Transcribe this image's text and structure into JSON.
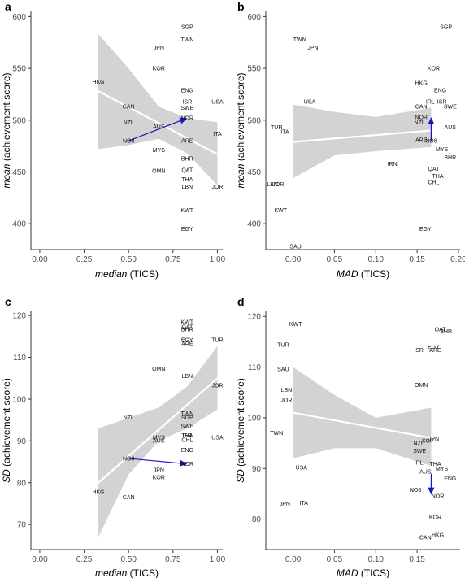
{
  "colors": {
    "band": "#d3d3d3",
    "fit_line": "#ffffff",
    "arrow": "#1515c8",
    "highlight_label": "#1515c8",
    "axis": "#333333"
  },
  "chart_data": [
    {
      "panel": "a",
      "type": "scatter",
      "xlabel": {
        "italic": "median",
        "normal": " (TICS)"
      },
      "ylabel": {
        "italic": "mean",
        "normal": " (achievement score)"
      },
      "xlim": [
        -0.05,
        1.03
      ],
      "ylim": [
        375,
        605
      ],
      "xticks": [
        0.0,
        0.25,
        0.5,
        0.75,
        1.0
      ],
      "xtick_labels": [
        "0.00",
        "0.25",
        "0.50",
        "0.75",
        "1.00"
      ],
      "yticks": [
        400,
        450,
        500,
        550,
        600
      ],
      "ytick_labels": [
        "400",
        "450",
        "500",
        "550",
        "600"
      ],
      "grid": false,
      "points": [
        {
          "label": "SGP",
          "x": 0.83,
          "y": 590
        },
        {
          "label": "TWN",
          "x": 0.83,
          "y": 578
        },
        {
          "label": "JPN",
          "x": 0.67,
          "y": 570
        },
        {
          "label": "KOR",
          "x": 0.67,
          "y": 550
        },
        {
          "label": "HKG",
          "x": 0.33,
          "y": 537
        },
        {
          "label": "ENG",
          "x": 0.83,
          "y": 529
        },
        {
          "label": "ISR",
          "x": 0.83,
          "y": 518
        },
        {
          "label": "USA",
          "x": 1.0,
          "y": 518
        },
        {
          "label": "CAN",
          "x": 0.5,
          "y": 513
        },
        {
          "label": "SWE",
          "x": 0.83,
          "y": 512
        },
        {
          "label": "NOR",
          "x": 0.83,
          "y": 502
        },
        {
          "label": "NZL",
          "x": 0.5,
          "y": 498
        },
        {
          "label": "AUS",
          "x": 0.67,
          "y": 494
        },
        {
          "label": "ITA",
          "x": 1.0,
          "y": 487
        },
        {
          "label": "NO8",
          "x": 0.5,
          "y": 480
        },
        {
          "label": "ARE",
          "x": 0.83,
          "y": 480
        },
        {
          "label": "MYS",
          "x": 0.67,
          "y": 471
        },
        {
          "label": "BHR",
          "x": 0.83,
          "y": 463
        },
        {
          "label": "OMN",
          "x": 0.67,
          "y": 451
        },
        {
          "label": "QAT",
          "x": 0.83,
          "y": 452
        },
        {
          "label": "THA",
          "x": 0.83,
          "y": 443
        },
        {
          "label": "LBN",
          "x": 0.83,
          "y": 436
        },
        {
          "label": "JOR",
          "x": 1.0,
          "y": 436
        },
        {
          "label": "KWT",
          "x": 0.83,
          "y": 413
        },
        {
          "label": "EGY",
          "x": 0.83,
          "y": 395
        }
      ],
      "fit": {
        "x": [
          0.33,
          1.0
        ],
        "y": [
          528,
          467
        ]
      },
      "band": {
        "x": [
          0.33,
          0.5,
          0.67,
          0.83,
          1.0
        ],
        "lower": [
          472,
          476,
          482,
          468,
          437
        ],
        "upper": [
          583,
          550,
          513,
          502,
          498
        ]
      },
      "arrows": [
        {
          "from": [
            0.5,
            480
          ],
          "to": [
            0.83,
            502
          ]
        }
      ],
      "highlight": []
    },
    {
      "panel": "b",
      "type": "scatter",
      "xlabel": {
        "italic": "MAD",
        "normal": " (TICS)"
      },
      "ylabel": {
        "italic": "mean",
        "normal": " (achievement score)"
      },
      "xlim": [
        -0.033,
        0.202
      ],
      "ylim": [
        375,
        605
      ],
      "xticks": [
        0.0,
        0.05,
        0.1,
        0.15,
        0.2
      ],
      "xtick_labels": [
        "0.00",
        "0.05",
        "0.10",
        "0.15",
        "0.20"
      ],
      "yticks": [
        400,
        450,
        500,
        550,
        600
      ],
      "ytick_labels": [
        "400",
        "450",
        "500",
        "550",
        "600"
      ],
      "grid": false,
      "points": [
        {
          "label": "SGP",
          "x": 0.185,
          "y": 590
        },
        {
          "label": "TWN",
          "x": 0.008,
          "y": 578
        },
        {
          "label": "JPN",
          "x": 0.024,
          "y": 570
        },
        {
          "label": "KOR",
          "x": 0.17,
          "y": 550
        },
        {
          "label": "HKG",
          "x": 0.155,
          "y": 536
        },
        {
          "label": "ENG",
          "x": 0.178,
          "y": 529
        },
        {
          "label": "USA",
          "x": 0.02,
          "y": 518
        },
        {
          "label": "IRL",
          "x": 0.166,
          "y": 518
        },
        {
          "label": "ISR",
          "x": 0.18,
          "y": 518
        },
        {
          "label": "CAN",
          "x": 0.155,
          "y": 513
        },
        {
          "label": "SWE",
          "x": 0.19,
          "y": 513
        },
        {
          "label": "NOR",
          "x": 0.155,
          "y": 503
        },
        {
          "label": "NZL",
          "x": 0.153,
          "y": 498
        },
        {
          "label": "TUR",
          "x": -0.02,
          "y": 493
        },
        {
          "label": "AUS",
          "x": 0.19,
          "y": 493
        },
        {
          "label": "ITA",
          "x": -0.01,
          "y": 489
        },
        {
          "label": "ARE",
          "x": 0.155,
          "y": 481
        },
        {
          "label": "NO8",
          "x": 0.167,
          "y": 480
        },
        {
          "label": "MYS",
          "x": 0.18,
          "y": 472
        },
        {
          "label": "BHR",
          "x": 0.19,
          "y": 464
        },
        {
          "label": "QAT",
          "x": 0.17,
          "y": 453
        },
        {
          "label": "IRN",
          "x": 0.12,
          "y": 458
        },
        {
          "label": "THA",
          "x": 0.175,
          "y": 446
        },
        {
          "label": "CHL",
          "x": 0.17,
          "y": 440
        },
        {
          "label": "LBN",
          "x": -0.025,
          "y": 438
        },
        {
          "label": "JOR",
          "x": -0.018,
          "y": 438
        },
        {
          "label": "KWT",
          "x": -0.015,
          "y": 413
        },
        {
          "label": "EGY",
          "x": 0.16,
          "y": 395
        },
        {
          "label": "SAU",
          "x": 0.003,
          "y": 378
        }
      ],
      "fit": {
        "x": [
          0.0,
          0.167
        ],
        "y": [
          479,
          490
        ]
      },
      "band": {
        "x": [
          0.0,
          0.05,
          0.1,
          0.167
        ],
        "lower": [
          444,
          466,
          470,
          474
        ],
        "upper": [
          515,
          508,
          503,
          512
        ]
      },
      "arrows": [
        {
          "from": [
            0.167,
            480
          ],
          "to": [
            0.167,
            503
          ]
        }
      ],
      "highlight": []
    },
    {
      "panel": "c",
      "type": "scatter",
      "xlabel": {
        "italic": "median",
        "normal": " (TICS)"
      },
      "ylabel": {
        "italic": "SD",
        "normal": " (achievement score)"
      },
      "xlim": [
        -0.05,
        1.03
      ],
      "ylim": [
        64,
        121
      ],
      "xticks": [
        0.0,
        0.25,
        0.5,
        0.75,
        1.0
      ],
      "xtick_labels": [
        "0.00",
        "0.25",
        "0.50",
        "0.75",
        "1.00"
      ],
      "yticks": [
        70,
        80,
        90,
        100,
        110,
        120
      ],
      "ytick_labels": [
        "70",
        "80",
        "90",
        "100",
        "110",
        "120"
      ],
      "grid": false,
      "points": [
        {
          "label": "KWT",
          "x": 0.83,
          "y": 118.5
        },
        {
          "label": "QAT",
          "x": 0.83,
          "y": 117.3
        },
        {
          "label": "BHR",
          "x": 0.83,
          "y": 116.7
        },
        {
          "label": "EGY",
          "x": 0.83,
          "y": 114.2
        },
        {
          "label": "ARE",
          "x": 0.83,
          "y": 113.2
        },
        {
          "label": "TUR",
          "x": 1.0,
          "y": 114.2
        },
        {
          "label": "OMN",
          "x": 0.67,
          "y": 107.3
        },
        {
          "label": "LBN",
          "x": 0.83,
          "y": 105.5
        },
        {
          "label": "JOR",
          "x": 1.0,
          "y": 103.3
        },
        {
          "label": "TWN",
          "x": 0.83,
          "y": 96.6
        },
        {
          "label": "NZL",
          "x": 0.5,
          "y": 95.6
        },
        {
          "label": "SGP",
          "x": 0.83,
          "y": 95.6
        },
        {
          "label": "SWE",
          "x": 0.83,
          "y": 93.6
        },
        {
          "label": "ISR",
          "x": 0.83,
          "y": 91.3
        },
        {
          "label": "THA",
          "x": 0.83,
          "y": 91.3
        },
        {
          "label": "MYS",
          "x": 0.67,
          "y": 90.8
        },
        {
          "label": "AUS",
          "x": 0.67,
          "y": 90.1
        },
        {
          "label": "USA",
          "x": 1.0,
          "y": 90.8
        },
        {
          "label": "CHL",
          "x": 0.83,
          "y": 90.3
        },
        {
          "label": "ENG",
          "x": 0.83,
          "y": 87.8
        },
        {
          "label": "NO8",
          "x": 0.5,
          "y": 85.8
        },
        {
          "label": "NOR",
          "x": 0.83,
          "y": 84.5
        },
        {
          "label": "JPN",
          "x": 0.67,
          "y": 83.1
        },
        {
          "label": "KOR",
          "x": 0.67,
          "y": 81.3
        },
        {
          "label": "HKG",
          "x": 0.33,
          "y": 77.8
        },
        {
          "label": "CAN",
          "x": 0.5,
          "y": 76.5
        }
      ],
      "fit": {
        "x": [
          0.33,
          1.0
        ],
        "y": [
          80,
          105
        ]
      },
      "band": {
        "x": [
          0.33,
          0.5,
          0.67,
          0.83,
          1.0
        ],
        "lower": [
          67,
          82,
          90,
          93,
          97.5
        ],
        "upper": [
          93,
          95.5,
          98,
          103,
          112.7
        ]
      },
      "arrows": [
        {
          "from": [
            0.5,
            85.8
          ],
          "to": [
            0.83,
            84.5
          ]
        }
      ],
      "highlight": [
        "JPN"
      ]
    },
    {
      "panel": "d",
      "type": "scatter",
      "xlabel": {
        "italic": "MAD",
        "normal": " (TICS)"
      },
      "ylabel": {
        "italic": "SD",
        "normal": " (achievement score)"
      },
      "xlim": [
        -0.033,
        0.202
      ],
      "ylim": [
        74,
        121
      ],
      "xticks": [
        0.0,
        0.05,
        0.1,
        0.15
      ],
      "xtick_labels": [
        "0.00",
        "0.05",
        "0.10",
        "0.15"
      ],
      "yticks": [
        80,
        90,
        100,
        110,
        120
      ],
      "ytick_labels": [
        "80",
        "90",
        "100",
        "110",
        "120"
      ],
      "grid": false,
      "points": [
        {
          "label": "KWT",
          "x": 0.003,
          "y": 118.5
        },
        {
          "label": "QAT",
          "x": 0.178,
          "y": 117.5
        },
        {
          "label": "BHR",
          "x": 0.185,
          "y": 117.1
        },
        {
          "label": "TUR",
          "x": -0.012,
          "y": 114.4
        },
        {
          "label": "EGY",
          "x": 0.17,
          "y": 114.0
        },
        {
          "label": "ISR",
          "x": 0.152,
          "y": 113.4
        },
        {
          "label": "ARE",
          "x": 0.172,
          "y": 113.4
        },
        {
          "label": "SAU",
          "x": -0.012,
          "y": 109.6
        },
        {
          "label": "OMN",
          "x": 0.155,
          "y": 106.5
        },
        {
          "label": "LBN",
          "x": -0.008,
          "y": 105.5
        },
        {
          "label": "JOR",
          "x": -0.008,
          "y": 103.5
        },
        {
          "label": "TWN",
          "x": -0.02,
          "y": 97.0
        },
        {
          "label": "JPN",
          "x": 0.17,
          "y": 95.9
        },
        {
          "label": "SGP",
          "x": 0.163,
          "y": 95.5
        },
        {
          "label": "NZL",
          "x": 0.152,
          "y": 95.0
        },
        {
          "label": "SWE",
          "x": 0.153,
          "y": 93.5
        },
        {
          "label": "IRL",
          "x": 0.152,
          "y": 91.2
        },
        {
          "label": "THA",
          "x": 0.172,
          "y": 90.9
        },
        {
          "label": "USA",
          "x": 0.01,
          "y": 90.2
        },
        {
          "label": "MYS",
          "x": 0.18,
          "y": 90.0
        },
        {
          "label": "AUS",
          "x": 0.16,
          "y": 89.4
        },
        {
          "label": "ENG",
          "x": 0.19,
          "y": 88.0
        },
        {
          "label": "NO8",
          "x": 0.148,
          "y": 85.8
        },
        {
          "label": "NOR",
          "x": 0.175,
          "y": 84.6
        },
        {
          "label": "JPN",
          "x": -0.01,
          "y": 83.1
        },
        {
          "label": "ITA",
          "x": 0.013,
          "y": 83.2
        },
        {
          "label": "KOR",
          "x": 0.172,
          "y": 80.4
        },
        {
          "label": "HKG",
          "x": 0.175,
          "y": 76.9
        },
        {
          "label": "CAN",
          "x": 0.16,
          "y": 76.4
        }
      ],
      "fit": {
        "x": [
          0.0,
          0.167
        ],
        "y": [
          101,
          96
        ]
      },
      "band": {
        "x": [
          0.0,
          0.05,
          0.1,
          0.167
        ],
        "lower": [
          92,
          94,
          94,
          90.5
        ],
        "upper": [
          110,
          104.5,
          100,
          102
        ]
      },
      "arrows": [
        {
          "from": [
            0.167,
            89
          ],
          "to": [
            0.167,
            84.8
          ]
        }
      ],
      "highlight": []
    }
  ]
}
